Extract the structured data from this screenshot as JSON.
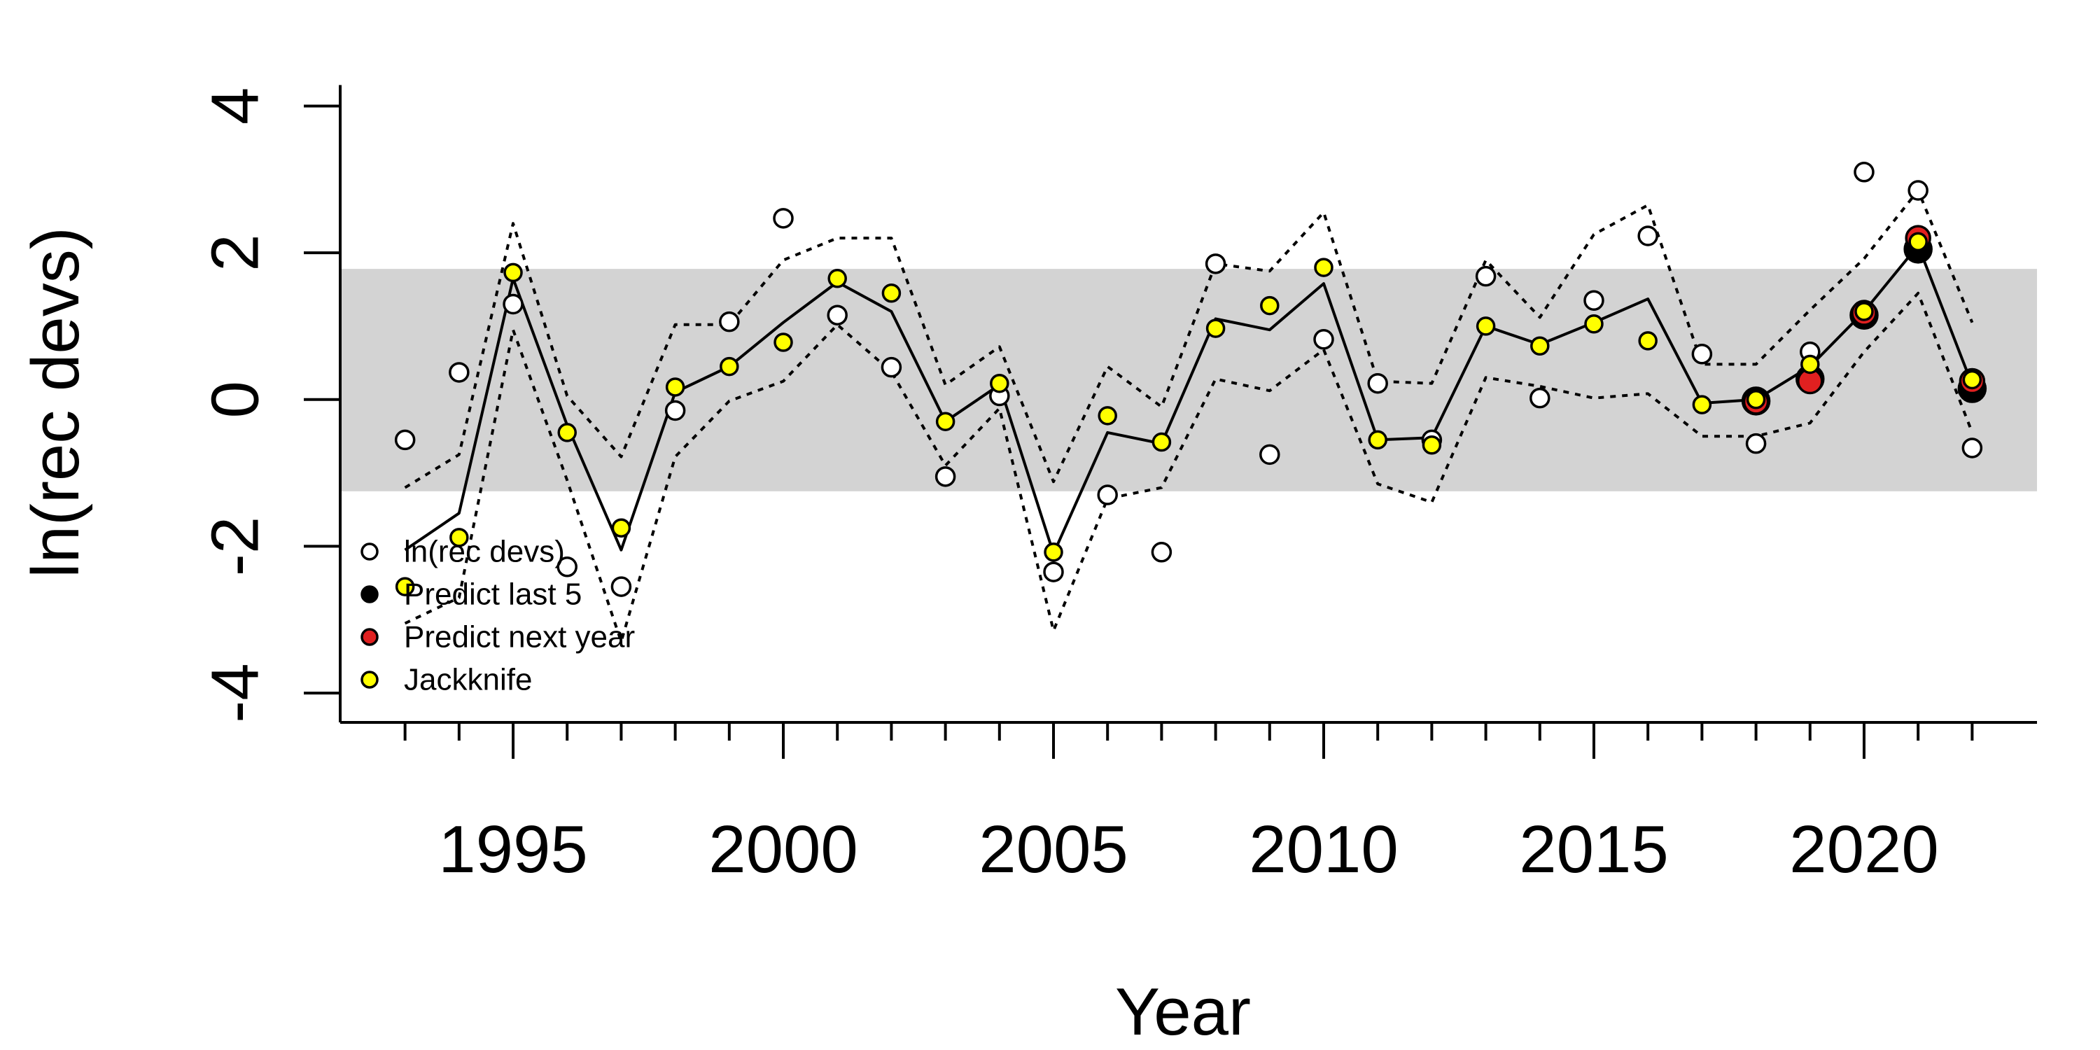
{
  "chart_data": {
    "type": "line",
    "title": "",
    "xlabel": "Year",
    "ylabel": "ln(rec devs)",
    "xlim": [
      1991.8,
      2023.2
    ],
    "ylim": [
      -4.4,
      4.3
    ],
    "xticks": [
      1993,
      1994,
      1995,
      1996,
      1997,
      1998,
      1999,
      2000,
      2001,
      2002,
      2003,
      2004,
      2005,
      2006,
      2007,
      2008,
      2009,
      2010,
      2011,
      2012,
      2013,
      2014,
      2015,
      2016,
      2017,
      2018,
      2019,
      2020,
      2021,
      2022
    ],
    "xtick_labels": [
      {
        "value": 1995,
        "label": "1995"
      },
      {
        "value": 2000,
        "label": "2000"
      },
      {
        "value": 2005,
        "label": "2005"
      },
      {
        "value": 2010,
        "label": "2010"
      },
      {
        "value": 2015,
        "label": "2015"
      },
      {
        "value": 2020,
        "label": "2020"
      }
    ],
    "ytick_labels": [
      {
        "value": 4,
        "label": "4"
      },
      {
        "value": 2,
        "label": "2"
      },
      {
        "value": 0,
        "label": "0"
      },
      {
        "value": -2,
        "label": "-2"
      },
      {
        "value": -4,
        "label": "-4"
      }
    ],
    "band": {
      "ymin": -1.25,
      "ymax": 1.78,
      "color": "#d3d3d3"
    },
    "series": [
      {
        "name": "ln(rec devs)",
        "kind": "points",
        "color": "#ffffff",
        "points": [
          [
            1993,
            -0.55
          ],
          [
            1994,
            0.37
          ],
          [
            1995,
            1.3
          ],
          [
            1996,
            -2.28
          ],
          [
            1997,
            -2.55
          ],
          [
            1998,
            -0.15
          ],
          [
            1999,
            1.06
          ],
          [
            2000,
            2.47
          ],
          [
            2001,
            1.15
          ],
          [
            2002,
            0.44
          ],
          [
            2003,
            -1.05
          ],
          [
            2004,
            0.05
          ],
          [
            2005,
            -2.35
          ],
          [
            2006,
            -1.3
          ],
          [
            2007,
            -2.08
          ],
          [
            2008,
            1.85
          ],
          [
            2009,
            -0.75
          ],
          [
            2010,
            0.82
          ],
          [
            2011,
            0.22
          ],
          [
            2012,
            -0.55
          ],
          [
            2013,
            1.68
          ],
          [
            2014,
            0.02
          ],
          [
            2015,
            1.35
          ],
          [
            2016,
            2.23
          ],
          [
            2017,
            0.62
          ],
          [
            2018,
            -0.6
          ],
          [
            2019,
            0.65
          ],
          [
            2020,
            3.1
          ],
          [
            2021,
            2.85
          ],
          [
            2022,
            -0.66
          ]
        ]
      },
      {
        "name": "Predict last 5",
        "kind": "points",
        "color": "#000000",
        "points": [
          [
            2018,
            -0.02
          ],
          [
            2019,
            0.28
          ],
          [
            2020,
            1.15
          ],
          [
            2021,
            2.05
          ],
          [
            2022,
            0.15
          ]
        ]
      },
      {
        "name": "Predict next year",
        "kind": "points",
        "color": "#e02020",
        "points": [
          [
            2018,
            -0.03
          ],
          [
            2019,
            0.25
          ],
          [
            2020,
            1.18
          ],
          [
            2021,
            2.2
          ],
          [
            2022,
            0.25
          ]
        ]
      },
      {
        "name": "Jackknife",
        "kind": "points",
        "color": "#ffff00",
        "points": [
          [
            1993,
            -2.55
          ],
          [
            1994,
            -1.88
          ],
          [
            1995,
            1.73
          ],
          [
            1996,
            -0.45
          ],
          [
            1997,
            -1.75
          ],
          [
            1998,
            0.17
          ],
          [
            1999,
            0.45
          ],
          [
            2000,
            0.78
          ],
          [
            2001,
            1.65
          ],
          [
            2002,
            1.45
          ],
          [
            2003,
            -0.3
          ],
          [
            2004,
            0.22
          ],
          [
            2005,
            -2.08
          ],
          [
            2006,
            -0.22
          ],
          [
            2007,
            -0.58
          ],
          [
            2008,
            0.97
          ],
          [
            2009,
            1.28
          ],
          [
            2010,
            1.8
          ],
          [
            2011,
            -0.55
          ],
          [
            2012,
            -0.62
          ],
          [
            2013,
            1.0
          ],
          [
            2014,
            0.73
          ],
          [
            2015,
            1.03
          ],
          [
            2016,
            0.8
          ],
          [
            2017,
            -0.07
          ],
          [
            2018,
            0.0
          ],
          [
            2019,
            0.48
          ],
          [
            2020,
            1.2
          ],
          [
            2021,
            2.15
          ],
          [
            2022,
            0.27
          ]
        ]
      },
      {
        "name": "central",
        "kind": "solid-line",
        "color": "#000000",
        "points": [
          [
            1993,
            -2.05
          ],
          [
            1994,
            -1.55
          ],
          [
            1995,
            1.65
          ],
          [
            1996,
            -0.35
          ],
          [
            1997,
            -2.05
          ],
          [
            1998,
            0.1
          ],
          [
            1999,
            0.45
          ],
          [
            2000,
            1.05
          ],
          [
            2001,
            1.6
          ],
          [
            2002,
            1.2
          ],
          [
            2003,
            -0.3
          ],
          [
            2004,
            0.2
          ],
          [
            2005,
            -2.1
          ],
          [
            2006,
            -0.45
          ],
          [
            2007,
            -0.6
          ],
          [
            2008,
            1.1
          ],
          [
            2009,
            0.95
          ],
          [
            2010,
            1.58
          ],
          [
            2011,
            -0.55
          ],
          [
            2012,
            -0.52
          ],
          [
            2013,
            1.0
          ],
          [
            2014,
            0.75
          ],
          [
            2015,
            1.05
          ],
          [
            2016,
            1.37
          ],
          [
            2017,
            -0.05
          ],
          [
            2018,
            0.0
          ],
          [
            2019,
            0.45
          ],
          [
            2020,
            1.2
          ],
          [
            2021,
            2.1
          ],
          [
            2022,
            0.2
          ]
        ]
      },
      {
        "name": "upper",
        "kind": "dotted-line",
        "color": "#000000",
        "points": [
          [
            1993,
            -1.2
          ],
          [
            1994,
            -0.75
          ],
          [
            1995,
            2.4
          ],
          [
            1996,
            0.05
          ],
          [
            1997,
            -0.78
          ],
          [
            1998,
            1.02
          ],
          [
            1999,
            1.02
          ],
          [
            2000,
            1.9
          ],
          [
            2001,
            2.2
          ],
          [
            2002,
            2.2
          ],
          [
            2003,
            0.2
          ],
          [
            2004,
            0.72
          ],
          [
            2005,
            -1.12
          ],
          [
            2006,
            0.45
          ],
          [
            2007,
            -0.1
          ],
          [
            2008,
            1.85
          ],
          [
            2009,
            1.75
          ],
          [
            2010,
            2.55
          ],
          [
            2011,
            0.25
          ],
          [
            2012,
            0.22
          ],
          [
            2013,
            1.9
          ],
          [
            2014,
            1.12
          ],
          [
            2015,
            2.25
          ],
          [
            2016,
            2.65
          ],
          [
            2017,
            0.48
          ],
          [
            2018,
            0.48
          ],
          [
            2019,
            1.22
          ],
          [
            2020,
            1.92
          ],
          [
            2021,
            2.85
          ],
          [
            2022,
            1.05
          ]
        ]
      },
      {
        "name": "lower",
        "kind": "dotted-line",
        "color": "#000000",
        "points": [
          [
            1993,
            -3.05
          ],
          [
            1994,
            -2.7
          ],
          [
            1995,
            0.95
          ],
          [
            1996,
            -1.1
          ],
          [
            1997,
            -3.3
          ],
          [
            1998,
            -0.78
          ],
          [
            1999,
            -0.02
          ],
          [
            2000,
            0.25
          ],
          [
            2001,
            1.02
          ],
          [
            2002,
            0.38
          ],
          [
            2003,
            -0.9
          ],
          [
            2004,
            -0.12
          ],
          [
            2005,
            -3.15
          ],
          [
            2006,
            -1.35
          ],
          [
            2007,
            -1.2
          ],
          [
            2008,
            0.28
          ],
          [
            2009,
            0.12
          ],
          [
            2010,
            0.68
          ],
          [
            2011,
            -1.15
          ],
          [
            2012,
            -1.4
          ],
          [
            2013,
            0.3
          ],
          [
            2014,
            0.18
          ],
          [
            2015,
            0.02
          ],
          [
            2016,
            0.08
          ],
          [
            2017,
            -0.5
          ],
          [
            2018,
            -0.5
          ],
          [
            2019,
            -0.32
          ],
          [
            2020,
            0.65
          ],
          [
            2021,
            1.45
          ],
          [
            2022,
            -0.45
          ]
        ]
      }
    ],
    "legend": {
      "placement": "bottom-left",
      "entries": [
        {
          "label": "ln(rec devs)",
          "color": "#ffffff"
        },
        {
          "label": "Predict last 5",
          "color": "#000000"
        },
        {
          "label": "Predict next year",
          "color": "#e02020"
        },
        {
          "label": "Jackknife",
          "color": "#ffff00"
        }
      ]
    }
  }
}
